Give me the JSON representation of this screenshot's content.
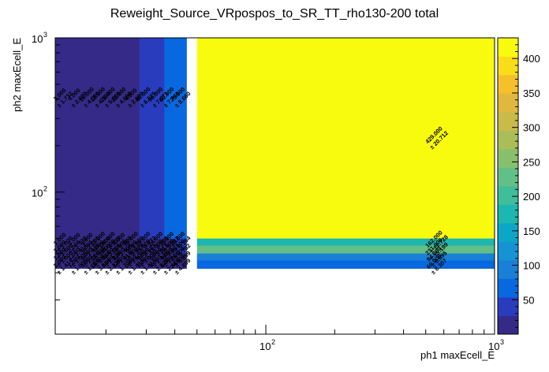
{
  "chart_data": {
    "type": "heatmap",
    "title": "Reweight_Source_VRpospos_to_SR_TT_rho130-200 total",
    "xlabel": "ph1 maxEcell_E",
    "ylabel": "ph2 maxEcell_E",
    "x_scale": "log",
    "y_scale": "log",
    "xlim": [
      12,
      1000
    ],
    "ylim": [
      12,
      1000
    ],
    "x_ticks": [
      {
        "base": "10",
        "exp": "2",
        "value": 100
      },
      {
        "base": "10",
        "exp": "3",
        "value": 1000
      }
    ],
    "y_ticks": [
      {
        "base": "10",
        "exp": "2",
        "value": 100
      },
      {
        "base": "10",
        "exp": "3",
        "value": 1000
      }
    ],
    "x_edges": [
      12,
      14,
      16,
      18,
      20,
      22,
      25,
      28,
      32,
      36,
      40,
      45,
      50,
      1000
    ],
    "y_edges": [
      12,
      14,
      16,
      18,
      20,
      22,
      25,
      28,
      32,
      36,
      40,
      45,
      50,
      1000
    ],
    "z_range": [
      0,
      430
    ],
    "colorbar_ticks": [
      50,
      100,
      150,
      200,
      250,
      300,
      350,
      400
    ],
    "palette": [
      "#352a87",
      "#2a3cbe",
      "#0868e0",
      "#1a7fd6",
      "#1693d2",
      "#0ca7c7",
      "#1db6b0",
      "#40bd9a",
      "#62bf87",
      "#88bf6d",
      "#abbd57",
      "#c8bb49",
      "#e0b93c",
      "#f5c02b",
      "#fadd19",
      "#f9fb0e"
    ],
    "cells": [
      {
        "xi": 0,
        "yi": 12,
        "value": "3.000",
        "error": "± 1.732"
      },
      {
        "xi": 1,
        "yi": 12,
        "value": "4.000",
        "error": "± 2.000"
      },
      {
        "xi": 2,
        "yi": 12,
        "value": "16.000",
        "error": "± 4.000"
      },
      {
        "xi": 3,
        "yi": 12,
        "value": "19.000",
        "error": "± 4.359"
      },
      {
        "xi": 4,
        "yi": 12,
        "value": "25.000",
        "error": "± 5.000"
      },
      {
        "xi": 5,
        "yi": 12,
        "value": "22.000",
        "error": "± 4.690"
      },
      {
        "xi": 6,
        "yi": 12,
        "value": "4.000",
        "error": "± 2.000"
      },
      {
        "xi": 7,
        "yi": 12,
        "value": "40.000",
        "error": "± 6.325"
      },
      {
        "xi": 8,
        "yi": 12,
        "value": "50.000",
        "error": "± 7.071"
      },
      {
        "xi": 9,
        "yi": 12,
        "value": "60.000",
        "error": "± 7.746"
      },
      {
        "xi": 10,
        "yi": 12,
        "value": "75.000",
        "error": "± 8.660"
      },
      {
        "xi": 12,
        "yi": 12,
        "value": "429.000",
        "error": "± 20.712"
      },
      {
        "xi": 12,
        "yi": 11,
        "value": "162.000",
        "error": "± 12.728"
      },
      {
        "xi": 12,
        "yi": 10,
        "value": "231.000",
        "error": "± 15.199"
      },
      {
        "xi": 12,
        "yi": 9,
        "value": "94.000",
        "error": "± 9.695"
      },
      {
        "xi": 12,
        "yi": 8,
        "value": "69.000",
        "error": "± 8.307"
      },
      {
        "xi": 0,
        "yi": 11,
        "value": "1.000",
        "error": "± 1.000"
      },
      {
        "xi": 1,
        "yi": 11,
        "value": "3.000",
        "error": "± 1.732"
      },
      {
        "xi": 2,
        "yi": 11,
        "value": "4.000",
        "error": "± 2.000"
      },
      {
        "xi": 3,
        "yi": 11,
        "value": "13.000",
        "error": "± 3.606"
      },
      {
        "xi": 4,
        "yi": 11,
        "value": "24.000",
        "error": "± 4.899"
      },
      {
        "xi": 5,
        "yi": 11,
        "value": "4.000",
        "error": "± 2.000"
      },
      {
        "xi": 6,
        "yi": 11,
        "value": "16.000",
        "error": "± 4.000"
      },
      {
        "xi": 7,
        "yi": 11,
        "value": "20.000",
        "error": "± 4.472"
      },
      {
        "xi": 8,
        "yi": 11,
        "value": "24.000",
        "error": "± 4.899"
      },
      {
        "xi": 9,
        "yi": 11,
        "value": "11.000",
        "error": "± 3.317"
      },
      {
        "xi": 10,
        "yi": 11,
        "value": "38.000",
        "error": "± 6.164"
      },
      {
        "xi": 0,
        "yi": 10,
        "value": "1.000",
        "error": "± 1.000"
      },
      {
        "xi": 1,
        "yi": 10,
        "value": "2.000",
        "error": "± 1.414"
      },
      {
        "xi": 2,
        "yi": 10,
        "value": "6.000",
        "error": "± 2.449"
      },
      {
        "xi": 3,
        "yi": 10,
        "value": "9.000",
        "error": "± 3.000"
      },
      {
        "xi": 4,
        "yi": 10,
        "value": "13.000",
        "error": "± 3.606"
      },
      {
        "xi": 5,
        "yi": 10,
        "value": "12.000",
        "error": "± 3.464"
      },
      {
        "xi": 6,
        "yi": 10,
        "value": "8.000",
        "error": "± 2.828"
      },
      {
        "xi": 7,
        "yi": 10,
        "value": "21.000",
        "error": "± 4.583"
      },
      {
        "xi": 8,
        "yi": 10,
        "value": "11.000",
        "error": "± 3.317"
      },
      {
        "xi": 9,
        "yi": 10,
        "value": "18.000",
        "error": "± 4.243"
      },
      {
        "xi": 10,
        "yi": 10,
        "value": "46.000",
        "error": "± 6.782"
      },
      {
        "xi": 0,
        "yi": 9,
        "value": "1.000",
        "error": "± 1.000"
      },
      {
        "xi": 1,
        "yi": 9,
        "value": "1.000",
        "error": "± 1.000"
      },
      {
        "xi": 2,
        "yi": 9,
        "value": "4.000",
        "error": "± 2.000"
      },
      {
        "xi": 3,
        "yi": 9,
        "value": "12.000",
        "error": "± 3.464"
      },
      {
        "xi": 4,
        "yi": 9,
        "value": "5.000",
        "error": "± 2.236"
      },
      {
        "xi": 5,
        "yi": 9,
        "value": "2.000",
        "error": "± 1.414"
      },
      {
        "xi": 6,
        "yi": 9,
        "value": "13.000",
        "error": "± 3.606"
      },
      {
        "xi": 7,
        "yi": 9,
        "value": "9.000",
        "error": "± 3.000"
      },
      {
        "xi": 8,
        "yi": 9,
        "value": "6.000",
        "error": "± 2.449"
      },
      {
        "xi": 9,
        "yi": 9,
        "value": "9.000",
        "error": "± 3.000"
      },
      {
        "xi": 10,
        "yi": 9,
        "value": "24.000",
        "error": "± 4.899"
      },
      {
        "xi": 0,
        "yi": 8,
        "value": "2.000",
        "error": "± 1.414"
      },
      {
        "xi": 1,
        "yi": 8,
        "value": "1.000",
        "error": "± 1.000"
      },
      {
        "xi": 2,
        "yi": 8,
        "value": "1.000",
        "error": "± 1.000"
      },
      {
        "xi": 3,
        "yi": 8,
        "value": "12.000",
        "error": "± 3.464"
      },
      {
        "xi": 4,
        "yi": 8,
        "value": "5.000",
        "error": "± 2.236"
      },
      {
        "xi": 5,
        "yi": 8,
        "value": "3.000",
        "error": "± 1.732"
      },
      {
        "xi": 6,
        "yi": 8,
        "value": "2.000",
        "error": "± 1.414"
      },
      {
        "xi": 7,
        "yi": 8,
        "value": "2.000",
        "error": "± 1.414"
      },
      {
        "xi": 8,
        "yi": 8,
        "value": "8.000",
        "error": "± 2.828"
      },
      {
        "xi": 9,
        "yi": 8,
        "value": "6.000",
        "error": "± 2.449"
      },
      {
        "xi": 10,
        "yi": 8,
        "value": "24.000",
        "error": "± 4.899"
      }
    ]
  }
}
